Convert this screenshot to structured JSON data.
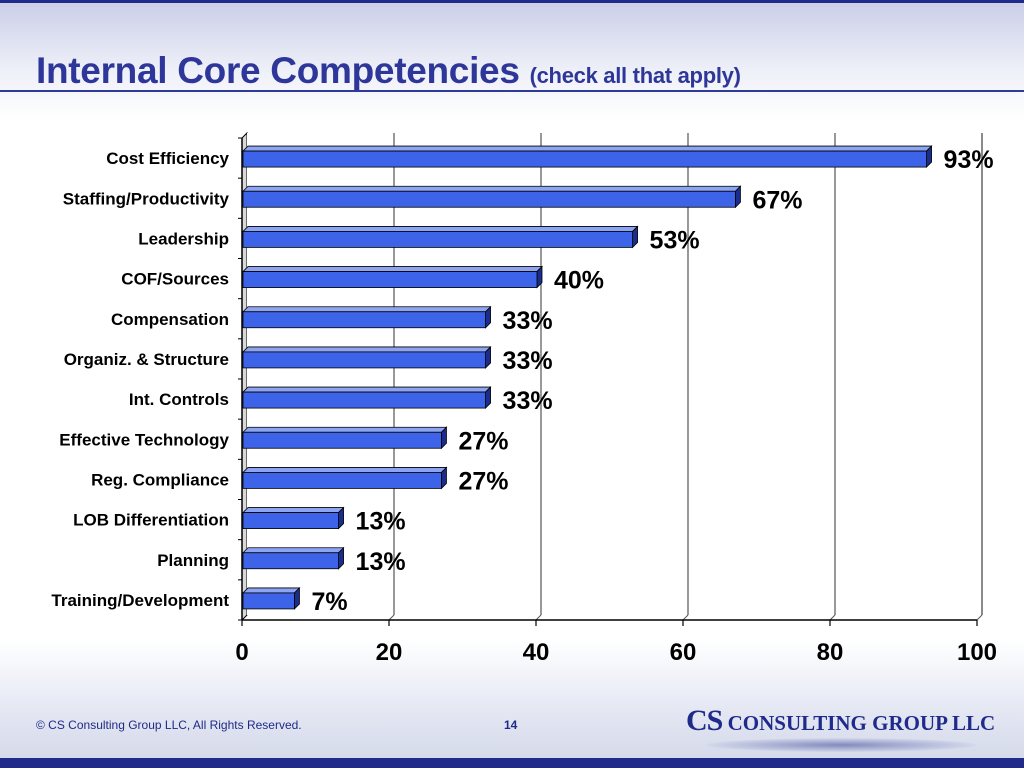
{
  "slide": {
    "title": "Internal Core Competencies",
    "subtitle": "(check all that apply)",
    "footer_copyright": "© CS Consulting Group LLC, All Rights Reserved.",
    "page_number": "14",
    "logo_cs": "CS",
    "logo_rest": " CONSULTING GROUP LLC"
  },
  "colors": {
    "bar_fill": "#3d63e8",
    "bar_top": "#8da4f2",
    "bar_side": "#1a2c8c",
    "title": "#2e3799"
  },
  "chart_data": {
    "type": "bar",
    "orientation": "horizontal",
    "categories": [
      "Cost Efficiency",
      "Staffing/Productivity",
      "Leadership",
      "COF/Sources",
      "Compensation",
      "Organiz. & Structure",
      "Int. Controls",
      "Effective Technology",
      "Reg. Compliance",
      "LOB Differentiation",
      "Planning",
      "Training/Development"
    ],
    "values": [
      93,
      67,
      53,
      40,
      33,
      33,
      33,
      27,
      27,
      13,
      13,
      7
    ],
    "data_labels": [
      "93%",
      "67%",
      "53%",
      "40%",
      "33%",
      "33%",
      "33%",
      "27%",
      "27%",
      "13%",
      "13%",
      "7%"
    ],
    "xlim": [
      0,
      100
    ],
    "xticks": [
      0,
      20,
      40,
      60,
      80,
      100
    ],
    "grid": true,
    "style": "3d"
  }
}
